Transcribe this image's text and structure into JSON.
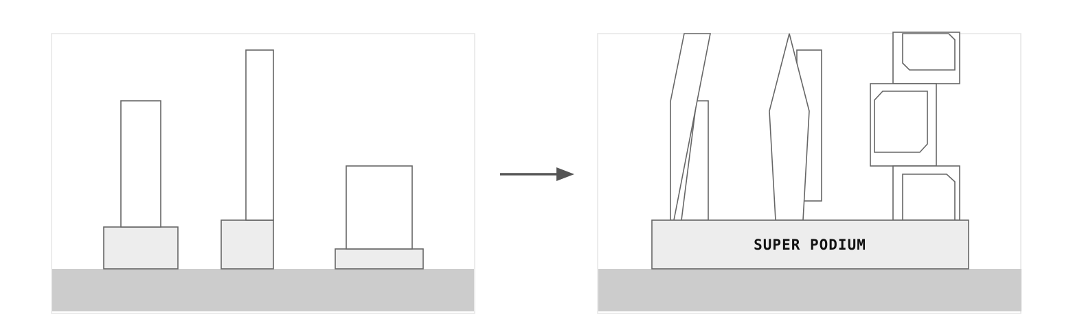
{
  "diagram": {
    "before_panel": {
      "podium_count": 3,
      "tower_count": 3
    },
    "after_panel": {
      "podium_label": "SUPER PODIUM"
    },
    "colors": {
      "ground": "#cccccc",
      "podium": "#ededed",
      "outline": "#666666",
      "arrow": "#555555"
    }
  }
}
